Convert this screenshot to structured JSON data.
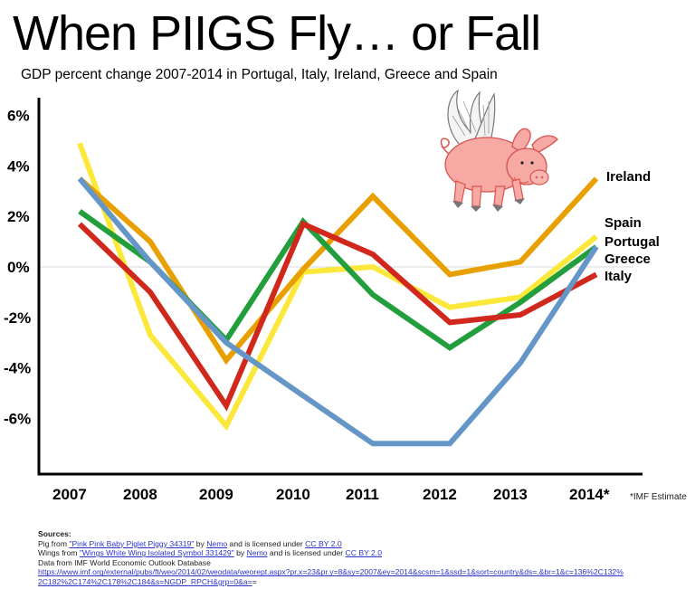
{
  "header": {
    "title": "When PIIGS Fly… or Fall",
    "subtitle": "GDP percent change 2007-2014  in Portugal, Italy, Ireland, Greece and Spain"
  },
  "note": "*IMF Estimate",
  "sources": {
    "heading": "Sources:",
    "pig": {
      "prefix": "Pig from ",
      "title_link": "\"Pink Pink Baby Piglet Piggy 34319\"",
      "by": " by ",
      "author_link": "Nemo",
      "mid": " and is licensed under ",
      "license_link": "CC BY 2.0"
    },
    "wings": {
      "prefix": "Wings from ",
      "title_link": "\"Wings White Wing Isolated Symbol 331429\"",
      "by": " by ",
      "author_link": "Nemo",
      "mid": " and is licensed under ",
      "license_link": "CC BY 2.0"
    },
    "data_line": "Data from IMF World Economic Outlook Database",
    "url_line1": "https://www.imf.org/external/pubs/ft/weo/2014/02/weodata/weorept.aspx?pr.x=23&pr.y=8&sy=2007&ey=2014&scsm=1&ssd=1&sort=country&ds=.&br=1&c=136%2C132%",
    "url_line2": "2C182%2C174%2C178%2C184&s=NGDP_RPCH&grp=0&a=",
    "url_tail": "="
  },
  "colors": {
    "Ireland": "#e8a000",
    "Spain": "#fbe83a",
    "Portugal": "#229e3c",
    "Greece": "#6596c8",
    "Italy": "#d0281c"
  },
  "chart_data": {
    "type": "line",
    "title": "When PIIGS Fly… or Fall",
    "subtitle": "GDP percent change 2007-2014 in Portugal, Italy, Ireland, Greece and Spain",
    "xlabel": "",
    "ylabel": "",
    "categories": [
      "2007",
      "2008",
      "2009",
      "2010",
      "2011",
      "2012",
      "2013",
      "2014*"
    ],
    "yticks": [
      "6%",
      "4%",
      "2%",
      "0%",
      "-2%",
      "-4%",
      "-6%"
    ],
    "ylim": [
      -8,
      6.5
    ],
    "grid": "zero line only",
    "legend_position": "right, inline labels at line ends",
    "annotations": [
      "*IMF Estimate"
    ],
    "series": [
      {
        "name": "Ireland",
        "color": "#e8a000",
        "values": [
          3.5,
          1.0,
          -3.7,
          -0.1,
          2.8,
          -0.3,
          0.2,
          3.5
        ]
      },
      {
        "name": "Spain",
        "color": "#fbe83a",
        "values": [
          4.9,
          -2.7,
          -6.3,
          -0.2,
          0.0,
          -1.6,
          -1.2,
          1.2
        ]
      },
      {
        "name": "Portugal",
        "color": "#229e3c",
        "values": [
          2.2,
          0.2,
          -2.9,
          1.8,
          -1.1,
          -3.2,
          -1.4,
          0.8
        ]
      },
      {
        "name": "Greece",
        "color": "#6596c8",
        "values": [
          3.5,
          0.2,
          -3.0,
          -5.1,
          -7.0,
          -7.0,
          -3.8,
          0.8
        ]
      },
      {
        "name": "Italy",
        "color": "#d0281c",
        "values": [
          1.7,
          -1.0,
          -5.5,
          1.7,
          0.5,
          -2.2,
          -1.9,
          -0.3
        ]
      }
    ]
  }
}
